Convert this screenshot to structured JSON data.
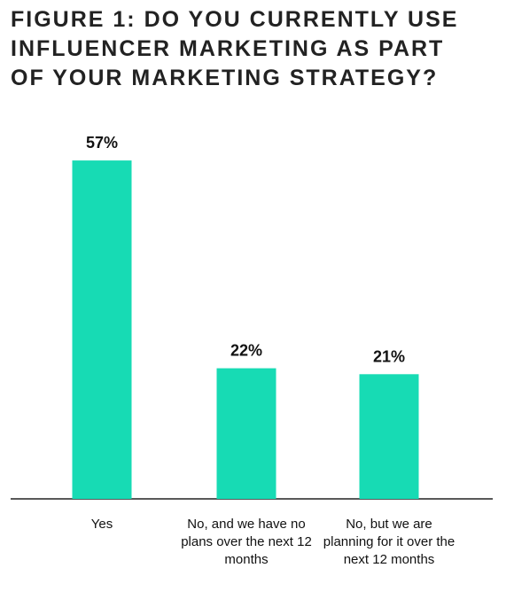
{
  "chart_data": {
    "type": "bar",
    "title": "FIGURE 1: DO YOU CURRENTLY USE INFLUENCER MARKETING AS PART OF YOUR MARKETING STRATEGY?",
    "categories": [
      "Yes",
      "No, and we have no plans over the next 12 months",
      "No, but we are planning for it over the next 12 months"
    ],
    "values": [
      57,
      22,
      21
    ],
    "value_labels": [
      "57%",
      "22%",
      "21%"
    ],
    "color": "#17dbb4"
  }
}
